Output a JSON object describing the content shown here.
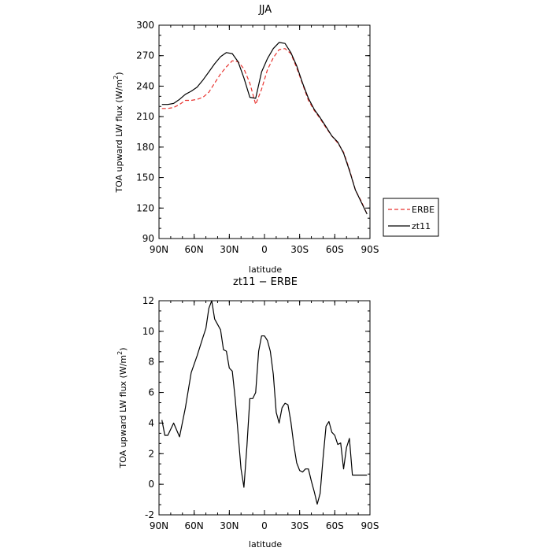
{
  "chart_data": [
    {
      "type": "line",
      "title": "JJA",
      "xlabel": "latitude",
      "ylabel": "TOA upward LW flux (W/m²)",
      "ylabel_parts": [
        "TOA upward LW flux (W/m",
        "2",
        ")"
      ],
      "x_ticks": [
        90,
        60,
        30,
        0,
        -30,
        -60,
        -90
      ],
      "x_tick_labels": [
        "90N",
        "60N",
        "30N",
        "0",
        "30S",
        "60S",
        "90S"
      ],
      "xlim": [
        90,
        -90
      ],
      "y_ticks": [
        90,
        120,
        150,
        180,
        210,
        240,
        270,
        300
      ],
      "ylim": [
        90,
        300
      ],
      "legend": {
        "position": "right",
        "entries": [
          "ERBE",
          "zt11"
        ]
      },
      "series": [
        {
          "name": "ERBE",
          "color": "#e8322e",
          "style": "dashed",
          "x": [
            87.5,
            82.5,
            77.5,
            72.5,
            67.5,
            62.5,
            57.5,
            52.5,
            47.5,
            42.5,
            37.5,
            32.5,
            27.5,
            22.5,
            17.5,
            12.5,
            7.5,
            2.5,
            -2.5,
            -7.5,
            -12.5,
            -17.5,
            -22.5,
            -27.5,
            -32.5,
            -37.5,
            -42.5,
            -47.5,
            -52.5,
            -57.5,
            -62.5,
            -67.5,
            -72.5,
            -77.5,
            -82.5,
            -87.5
          ],
          "values": [
            218,
            218,
            219,
            222,
            226,
            226,
            227,
            229,
            234,
            243,
            252,
            259,
            265,
            264,
            257,
            243,
            222,
            237,
            256,
            268,
            276,
            277,
            272,
            258,
            242,
            226,
            216,
            208,
            199,
            191,
            184,
            175,
            158,
            138,
            127,
            114
          ]
        },
        {
          "name": "zt11",
          "color": "#000000",
          "style": "solid",
          "x": [
            87.5,
            82.5,
            77.5,
            72.5,
            67.5,
            62.5,
            57.5,
            52.5,
            47.5,
            42.5,
            37.5,
            32.5,
            27.5,
            22.5,
            17.5,
            12.5,
            7.5,
            2.5,
            -2.5,
            -7.5,
            -12.5,
            -17.5,
            -22.5,
            -27.5,
            -32.5,
            -37.5,
            -42.5,
            -47.5,
            -52.5,
            -57.5,
            -62.5,
            -67.5,
            -72.5,
            -77.5,
            -82.5,
            -87.5
          ],
          "values": [
            222,
            222,
            223,
            227,
            232,
            235,
            239,
            246,
            254,
            262,
            269,
            273,
            272,
            264,
            248,
            229,
            228,
            254,
            267,
            277,
            283,
            282,
            273,
            260,
            243,
            228,
            217,
            209,
            200,
            191,
            185,
            174,
            157,
            138,
            126,
            114
          ]
        }
      ]
    },
    {
      "type": "line",
      "title": "zt11 − ERBE",
      "xlabel": "latitude",
      "ylabel": "TOA upward LW flux (W/m²)",
      "ylabel_parts": [
        "TOA upward LW flux (W/m",
        "2",
        ")"
      ],
      "x_ticks": [
        90,
        60,
        30,
        0,
        -30,
        -60,
        -90
      ],
      "x_tick_labels": [
        "90N",
        "60N",
        "30N",
        "0",
        "30S",
        "60S",
        "90S"
      ],
      "xlim": [
        90,
        -90
      ],
      "y_ticks": [
        -2,
        0,
        2,
        4,
        6,
        8,
        10,
        12
      ],
      "ylim": [
        -2,
        12
      ],
      "series": [
        {
          "color": "#000000",
          "style": "solid",
          "x": [
            87.5,
            85,
            82.5,
            77.5,
            72.5,
            67.5,
            62.5,
            57.5,
            52.5,
            50,
            47.5,
            45,
            42.5,
            37.5,
            35,
            32.5,
            30,
            27.5,
            25,
            22.5,
            20,
            17.5,
            15,
            12.5,
            10,
            7.5,
            5,
            2.5,
            0,
            -2.5,
            -5,
            -7.5,
            -10,
            -12.5,
            -15,
            -17.5,
            -20,
            -22.5,
            -25,
            -27.5,
            -30,
            -32.5,
            -35,
            -37.5,
            -40,
            -42.5,
            -45,
            -47.5,
            -50,
            -52.5,
            -55,
            -57.5,
            -60,
            -62.5,
            -65,
            -67.5,
            -70,
            -72.5,
            -75,
            -77.5,
            -80,
            -82.5,
            -85,
            -87.5
          ],
          "values": [
            4.2,
            3.2,
            3.2,
            4.0,
            3.1,
            5.0,
            7.3,
            8.4,
            9.6,
            10.2,
            11.5,
            12.0,
            10.8,
            10.1,
            8.8,
            8.7,
            7.6,
            7.4,
            5.6,
            3.3,
            1.0,
            -0.2,
            2.5,
            5.6,
            5.6,
            6.0,
            8.7,
            9.7,
            9.7,
            9.4,
            8.7,
            7.2,
            4.7,
            4.0,
            5.0,
            5.3,
            5.2,
            4.1,
            2.6,
            1.4,
            0.9,
            0.8,
            1.0,
            1.0,
            0.2,
            -0.5,
            -1.3,
            -0.6,
            1.7,
            3.8,
            4.1,
            3.4,
            3.2,
            2.6,
            2.7,
            1.0,
            2.4,
            3.0,
            0.6,
            0.6,
            0.6,
            0.6,
            0.6,
            0.6
          ]
        }
      ]
    }
  ]
}
